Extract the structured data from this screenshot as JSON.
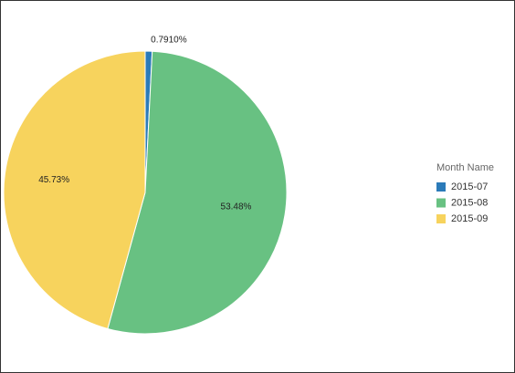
{
  "chart_data": {
    "type": "pie",
    "legend_title": "Month Name",
    "categories": [
      "2015-07",
      "2015-08",
      "2015-09"
    ],
    "values": [
      0.791,
      53.48,
      45.73
    ],
    "value_labels": [
      "0.7910%",
      "53.48%",
      "45.73%"
    ],
    "colors": [
      "#2b7bb9",
      "#68c182",
      "#f7d35d"
    ],
    "legend": "right"
  }
}
